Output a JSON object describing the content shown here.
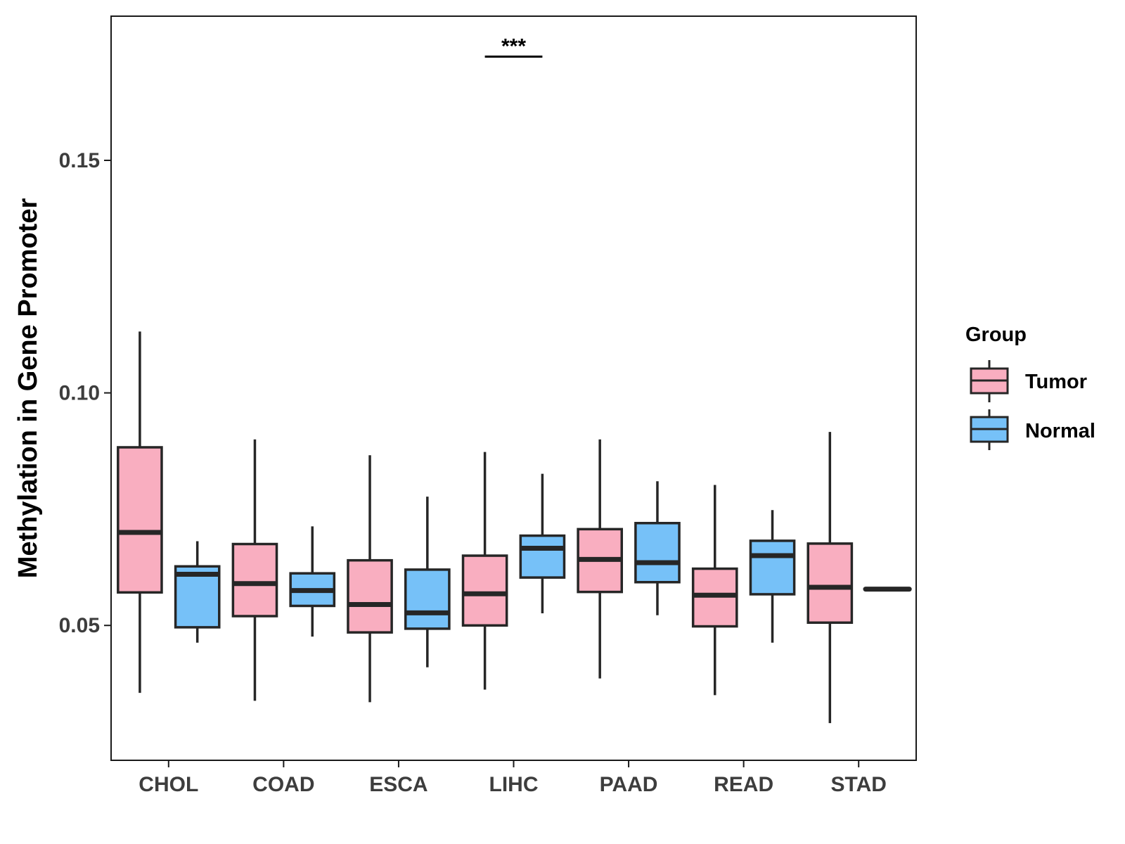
{
  "chart_data": {
    "type": "boxplot",
    "title": "",
    "xlabel": "",
    "ylabel": "Methylation in Gene Promoter",
    "ylim": [
      0.021,
      0.181
    ],
    "yticks": [
      0.05,
      0.1,
      0.15
    ],
    "ytick_labels": [
      "0.05",
      "0.10",
      "0.15"
    ],
    "grid": false,
    "legend": {
      "title": "Group",
      "position": "right",
      "entries": [
        "Tumor",
        "Normal"
      ]
    },
    "colors": {
      "Tumor": "#F9AEC0",
      "Normal": "#76C1F8",
      "outline": "#262626",
      "axis_text": "#3d3d3d"
    },
    "categories": [
      "CHOL",
      "COAD",
      "ESCA",
      "LIHC",
      "PAAD",
      "READ",
      "STAD"
    ],
    "series": [
      {
        "name": "Tumor",
        "boxes": [
          {
            "whisker_low": 0.0355,
            "q1": 0.0571,
            "median": 0.07,
            "q3": 0.0883,
            "whisker_high": 0.1132
          },
          {
            "whisker_low": 0.0338,
            "q1": 0.052,
            "median": 0.059,
            "q3": 0.0675,
            "whisker_high": 0.09
          },
          {
            "whisker_low": 0.0335,
            "q1": 0.0485,
            "median": 0.0545,
            "q3": 0.064,
            "whisker_high": 0.0866
          },
          {
            "whisker_low": 0.0362,
            "q1": 0.05,
            "median": 0.0568,
            "q3": 0.065,
            "whisker_high": 0.0873
          },
          {
            "whisker_low": 0.0386,
            "q1": 0.0572,
            "median": 0.0642,
            "q3": 0.0707,
            "whisker_high": 0.09
          },
          {
            "whisker_low": 0.035,
            "q1": 0.0498,
            "median": 0.0565,
            "q3": 0.0622,
            "whisker_high": 0.0802
          },
          {
            "whisker_low": 0.029,
            "q1": 0.0506,
            "median": 0.0582,
            "q3": 0.0676,
            "whisker_high": 0.0916
          }
        ]
      },
      {
        "name": "Normal",
        "boxes": [
          {
            "whisker_low": 0.0463,
            "q1": 0.0496,
            "median": 0.061,
            "q3": 0.0627,
            "whisker_high": 0.0681
          },
          {
            "whisker_low": 0.0476,
            "q1": 0.0542,
            "median": 0.0575,
            "q3": 0.0612,
            "whisker_high": 0.0713
          },
          {
            "whisker_low": 0.041,
            "q1": 0.0493,
            "median": 0.0527,
            "q3": 0.062,
            "whisker_high": 0.0777
          },
          {
            "whisker_low": 0.0526,
            "q1": 0.0603,
            "median": 0.0666,
            "q3": 0.0693,
            "whisker_high": 0.0826
          },
          {
            "whisker_low": 0.0522,
            "q1": 0.0593,
            "median": 0.0635,
            "q3": 0.072,
            "whisker_high": 0.081
          },
          {
            "whisker_low": 0.0463,
            "q1": 0.0567,
            "median": 0.065,
            "q3": 0.0682,
            "whisker_high": 0.0748
          },
          {
            "whisker_low": 0.0578,
            "q1": 0.0578,
            "median": 0.0578,
            "q3": 0.0578,
            "whisker_high": 0.0578
          }
        ]
      }
    ],
    "annotations": [
      {
        "category": "LIHC",
        "text": "***",
        "y": 0.1723
      }
    ]
  }
}
